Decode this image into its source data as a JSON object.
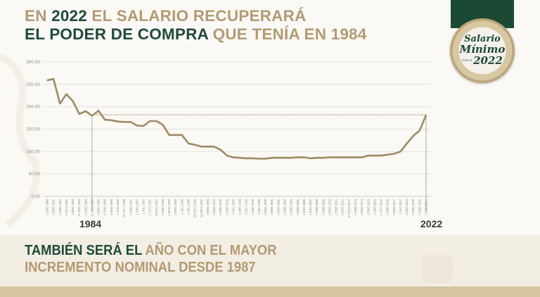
{
  "headline": {
    "line1": [
      {
        "text": "EN ",
        "color": "tan"
      },
      {
        "text": "2022",
        "color": "green"
      },
      {
        "text": " EL SALARIO RECUPERARÁ",
        "color": "tan"
      }
    ],
    "line2": [
      {
        "text": "EL PODER DE COMPRA",
        "color": "green"
      },
      {
        "text": " QUE TENÍA EN 1984",
        "color": "tan"
      }
    ]
  },
  "subheadline": {
    "line1": [
      {
        "text": "TAMBIÉN SERÁ EL",
        "color": "green"
      },
      {
        "text": " AÑO CON EL MAYOR",
        "color": "tan"
      }
    ],
    "line2": [
      {
        "text": "INCREMENTO NOMINAL DESDE 1987",
        "color": "tan"
      }
    ]
  },
  "badge": {
    "line1": "Salario",
    "line2": "Mínimo",
    "year": "2022",
    "small": "2020-21"
  },
  "colors": {
    "tan": "#b39a72",
    "green": "#1f4a38",
    "line": "#a08a64"
  },
  "chart_data": {
    "type": "line",
    "title": "",
    "xlabel": "",
    "ylabel": "",
    "ylim": [
      0,
      300
    ],
    "yticks": [
      "0.00",
      "50.00",
      "100.00",
      "150.00",
      "200.00",
      "250.00",
      "300.00"
    ],
    "grid": true,
    "categories": [
      "1 ENE 1980",
      "1 ENE 1981",
      "1 ENE 1982",
      "1 NOV 1982",
      "1 ENE 1983",
      "14 JUN 1983",
      "1 ENE 1984",
      "11 JUN 1984",
      "1 ENE 1985",
      "4 JUN 1985",
      "1 ENE 1986",
      "1 JUN 1986",
      "22 OCT 1986",
      "1 ENE 1987",
      "1 ABR 1987",
      "1 JUL 1987",
      "1 OCT 1987",
      "16 DIC 1987",
      "1 ENE 1988",
      "1 MAR 1988",
      "1 ENE 1989",
      "1 JUL 1989",
      "4 DIC 1989",
      "16 NOV 1990",
      "11 NOV 1991",
      "1 ENE 1993",
      "1 ENE 1994",
      "1 ENE 1995",
      "1 ABR 1995",
      "4 DIC 1995",
      "1 ABR 1996",
      "3 DIC 1996",
      "1 ENE 1998",
      "3 DIC 1998",
      "1 ENE 2000",
      "1 ENE 2001",
      "1 ENE 2002",
      "1 ENE 2003",
      "1 ENE 2004",
      "1 ENE 2005",
      "1 ENE 2006",
      "1 ENE 2007",
      "1 ENE 2008",
      "1 ENE 2009",
      "1 ENE 2010",
      "1 ENE 2011",
      "1 ENE 2012",
      "27 NOV 2012",
      "1 ENE 2013",
      "1 ENE 2014",
      "1 ENE 2015",
      "1 ABR 2015",
      "1 OCT 2015",
      "1 ENE 2016",
      "1 ENE 2017",
      "1 DIC 2017",
      "1 ENE 2019",
      "1 ENE 2020",
      "1 ENE 2021",
      "1 ENE 2022"
    ],
    "values": [
      259,
      262,
      207,
      228,
      213,
      184,
      190,
      180,
      191,
      171,
      170,
      167,
      166,
      166,
      158,
      157,
      168,
      168,
      160,
      137,
      137,
      137,
      118,
      115,
      111,
      111,
      111,
      104,
      91,
      87,
      86,
      85,
      85,
      84,
      84,
      86,
      86,
      86,
      86,
      87,
      87,
      85,
      86,
      86,
      87,
      87,
      87,
      87,
      87,
      87,
      91,
      91,
      91,
      93,
      95,
      100,
      118,
      135,
      147,
      182
    ],
    "reference_line": {
      "value": 182
    },
    "highlight": [
      {
        "category_index": 7,
        "label": "1984"
      },
      {
        "category_index": 59,
        "label": "2022"
      }
    ]
  }
}
